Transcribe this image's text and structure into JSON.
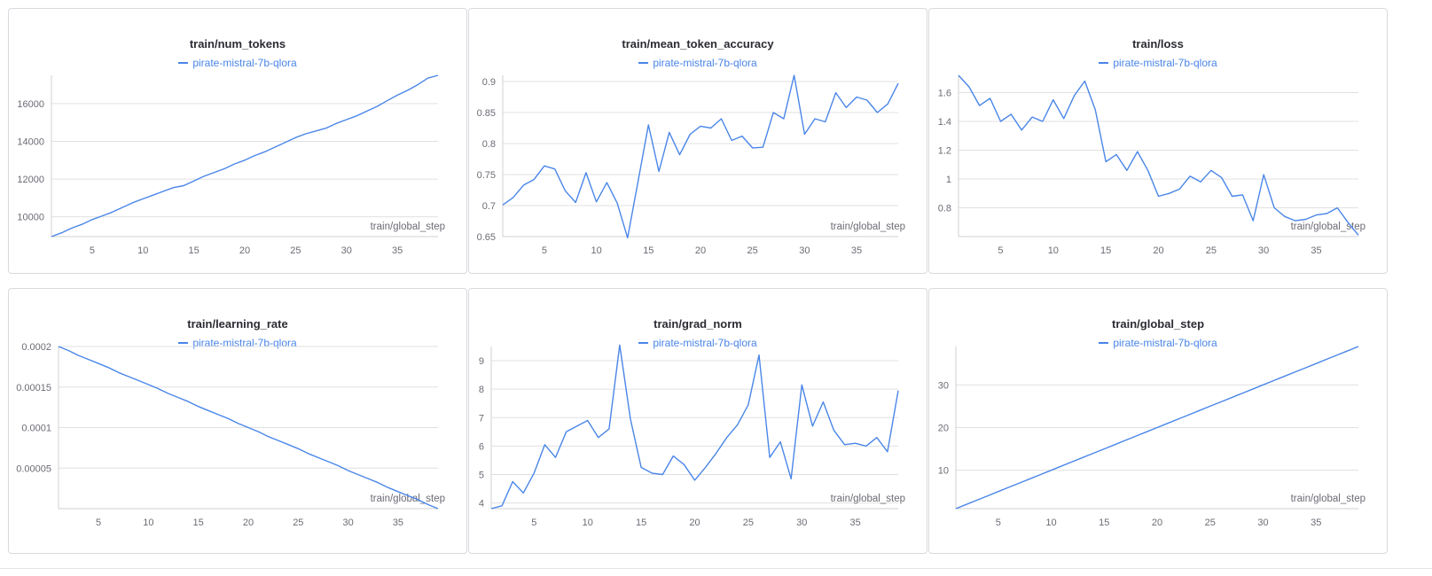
{
  "chart_data": [
    {
      "type": "line",
      "title": "train/num_tokens",
      "xlabel": "train/global_step",
      "ylabel": "",
      "xlim": [
        1,
        39
      ],
      "ylim": [
        8950,
        17500
      ],
      "xticks": [
        5,
        10,
        15,
        20,
        25,
        30,
        35
      ],
      "yticks": [
        10000,
        12000,
        14000,
        16000
      ],
      "ytick_labels": [
        "10000",
        "12000",
        "14000",
        "16000"
      ],
      "series": [
        {
          "name": "pirate-mistral-7b-qlora",
          "color": "#4a86e8",
          "x": [
            1,
            2,
            3,
            4,
            5,
            6,
            7,
            8,
            9,
            10,
            11,
            12,
            13,
            14,
            15,
            16,
            17,
            18,
            19,
            20,
            21,
            22,
            23,
            24,
            25,
            26,
            27,
            28,
            29,
            30,
            31,
            32,
            33,
            34,
            35,
            36,
            37,
            38,
            39
          ],
          "y": [
            8950,
            9150,
            9400,
            9600,
            9850,
            10050,
            10250,
            10500,
            10750,
            10950,
            11150,
            11350,
            11550,
            11650,
            11900,
            12150,
            12350,
            12550,
            12800,
            13000,
            13250,
            13450,
            13700,
            13950,
            14200,
            14400,
            14550,
            14700,
            14950,
            15150,
            15350,
            15600,
            15850,
            16150,
            16450,
            16700,
            17000,
            17350,
            17500
          ]
        }
      ]
    },
    {
      "type": "line",
      "title": "train/mean_token_accuracy",
      "xlabel": "train/global_step",
      "ylabel": "",
      "xlim": [
        1,
        39
      ],
      "ylim": [
        0.65,
        0.91
      ],
      "xticks": [
        5,
        10,
        15,
        20,
        25,
        30,
        35
      ],
      "yticks": [
        0.65,
        0.7,
        0.75,
        0.8,
        0.85,
        0.9
      ],
      "ytick_labels": [
        "0.65",
        "0.7",
        "0.75",
        "0.8",
        "0.85",
        "0.9"
      ],
      "series": [
        {
          "name": "pirate-mistral-7b-qlora",
          "color": "#4a86e8",
          "x": [
            1,
            2,
            3,
            4,
            5,
            6,
            7,
            8,
            9,
            10,
            11,
            12,
            13,
            14,
            15,
            16,
            17,
            18,
            19,
            20,
            21,
            22,
            23,
            24,
            25,
            26,
            27,
            28,
            29,
            30,
            31,
            32,
            33,
            34,
            35,
            36,
            37,
            38,
            39
          ],
          "y": [
            0.701,
            0.713,
            0.733,
            0.742,
            0.764,
            0.759,
            0.724,
            0.705,
            0.753,
            0.706,
            0.737,
            0.704,
            0.648,
            0.739,
            0.83,
            0.755,
            0.818,
            0.782,
            0.815,
            0.828,
            0.825,
            0.84,
            0.805,
            0.812,
            0.793,
            0.794,
            0.85,
            0.84,
            0.91,
            0.815,
            0.84,
            0.835,
            0.882,
            0.858,
            0.875,
            0.87,
            0.85,
            0.864,
            0.897
          ]
        }
      ]
    },
    {
      "type": "line",
      "title": "train/loss",
      "xlabel": "train/global_step",
      "ylabel": "",
      "xlim": [
        1,
        39
      ],
      "ylim": [
        0.6,
        1.72
      ],
      "xticks": [
        5,
        10,
        15,
        20,
        25,
        30,
        35
      ],
      "yticks": [
        0.8,
        1.0,
        1.2,
        1.4,
        1.6
      ],
      "ytick_labels": [
        "0.8",
        "1",
        "1.2",
        "1.4",
        "1.6"
      ],
      "series": [
        {
          "name": "pirate-mistral-7b-qlora",
          "color": "#4a86e8",
          "x": [
            1,
            2,
            3,
            4,
            5,
            6,
            7,
            8,
            9,
            10,
            11,
            12,
            13,
            14,
            15,
            16,
            17,
            18,
            19,
            20,
            21,
            22,
            23,
            24,
            25,
            26,
            27,
            28,
            29,
            30,
            31,
            32,
            33,
            34,
            35,
            36,
            37,
            38,
            39
          ],
          "y": [
            1.72,
            1.64,
            1.51,
            1.56,
            1.4,
            1.45,
            1.34,
            1.43,
            1.4,
            1.55,
            1.42,
            1.58,
            1.68,
            1.48,
            1.12,
            1.17,
            1.06,
            1.19,
            1.06,
            0.88,
            0.9,
            0.93,
            1.02,
            0.98,
            1.06,
            1.01,
            0.88,
            0.89,
            0.71,
            1.03,
            0.8,
            0.74,
            0.71,
            0.72,
            0.75,
            0.76,
            0.8,
            0.7,
            0.61
          ]
        }
      ]
    },
    {
      "type": "line",
      "title": "train/learning_rate",
      "xlabel": "train/global_step",
      "ylabel": "",
      "xlim": [
        1,
        39
      ],
      "ylim": [
        0,
        0.0002
      ],
      "xticks": [
        5,
        10,
        15,
        20,
        25,
        30,
        35
      ],
      "yticks": [
        5e-05,
        0.0001,
        0.00015,
        0.0002
      ],
      "ytick_labels": [
        "0.00005",
        "0.0001",
        "0.00015",
        "0.0002"
      ],
      "series": [
        {
          "name": "pirate-mistral-7b-qlora",
          "color": "#4a86e8",
          "x": [
            1,
            2,
            3,
            4,
            5,
            6,
            7,
            8,
            9,
            10,
            11,
            12,
            13,
            14,
            15,
            16,
            17,
            18,
            19,
            20,
            21,
            22,
            23,
            24,
            25,
            26,
            27,
            28,
            29,
            30,
            31,
            32,
            33,
            34,
            35,
            36,
            37,
            38,
            39
          ],
          "y": [
            0.0002,
            0.000195,
            0.000189,
            0.000184,
            0.000179,
            0.000174,
            0.000168,
            0.000163,
            0.000158,
            0.000153,
            0.000148,
            0.000142,
            0.000137,
            0.000132,
            0.000126,
            0.000121,
            0.000116,
            0.000111,
            0.000105,
            0.0001,
            9.5e-05,
            8.9e-05,
            8.4e-05,
            7.9e-05,
            7.4e-05,
            6.8e-05,
            6.3e-05,
            5.8e-05,
            5.3e-05,
            4.7e-05,
            4.2e-05,
            3.7e-05,
            3.2e-05,
            2.6e-05,
            2.1e-05,
            1.6e-05,
            1.1e-05,
            5e-06,
            0.0
          ]
        }
      ]
    },
    {
      "type": "line",
      "title": "train/grad_norm",
      "xlabel": "train/global_step",
      "ylabel": "",
      "xlim": [
        1,
        39
      ],
      "ylim": [
        3.8,
        9.5
      ],
      "xticks": [
        5,
        10,
        15,
        20,
        25,
        30,
        35
      ],
      "yticks": [
        4,
        5,
        6,
        7,
        8,
        9
      ],
      "ytick_labels": [
        "4",
        "5",
        "6",
        "7",
        "8",
        "9"
      ],
      "series": [
        {
          "name": "pirate-mistral-7b-qlora",
          "color": "#4a86e8",
          "x": [
            1,
            2,
            3,
            4,
            5,
            6,
            7,
            8,
            9,
            10,
            11,
            12,
            13,
            14,
            15,
            16,
            17,
            18,
            19,
            20,
            21,
            22,
            23,
            24,
            25,
            26,
            27,
            28,
            29,
            30,
            31,
            32,
            33,
            34,
            35,
            36,
            37,
            38,
            39
          ],
          "y": [
            3.8,
            3.9,
            4.75,
            4.35,
            5.05,
            6.05,
            5.6,
            6.5,
            6.7,
            6.9,
            6.3,
            6.6,
            9.55,
            6.95,
            5.25,
            5.05,
            5.0,
            5.65,
            5.35,
            4.8,
            5.25,
            5.75,
            6.3,
            6.75,
            7.45,
            9.2,
            5.6,
            6.15,
            4.85,
            8.15,
            6.7,
            7.55,
            6.55,
            6.05,
            6.1,
            6.0,
            6.3,
            5.8,
            7.95
          ]
        }
      ]
    },
    {
      "type": "line",
      "title": "train/global_step",
      "xlabel": "train/global_step",
      "ylabel": "",
      "xlim": [
        1,
        39
      ],
      "ylim": [
        1,
        39
      ],
      "xticks": [
        5,
        10,
        15,
        20,
        25,
        30,
        35
      ],
      "yticks": [
        10,
        20,
        30
      ],
      "ytick_labels": [
        "10",
        "20",
        "30"
      ],
      "series": [
        {
          "name": "pirate-mistral-7b-qlora",
          "color": "#4a86e8",
          "x": [
            1,
            2,
            3,
            4,
            5,
            6,
            7,
            8,
            9,
            10,
            11,
            12,
            13,
            14,
            15,
            16,
            17,
            18,
            19,
            20,
            21,
            22,
            23,
            24,
            25,
            26,
            27,
            28,
            29,
            30,
            31,
            32,
            33,
            34,
            35,
            36,
            37,
            38,
            39
          ],
          "y": [
            1,
            2,
            3,
            4,
            5,
            6,
            7,
            8,
            9,
            10,
            11,
            12,
            13,
            14,
            15,
            16,
            17,
            18,
            19,
            20,
            21,
            22,
            23,
            24,
            25,
            26,
            27,
            28,
            29,
            30,
            31,
            32,
            33,
            34,
            35,
            36,
            37,
            38,
            39
          ]
        }
      ]
    }
  ]
}
